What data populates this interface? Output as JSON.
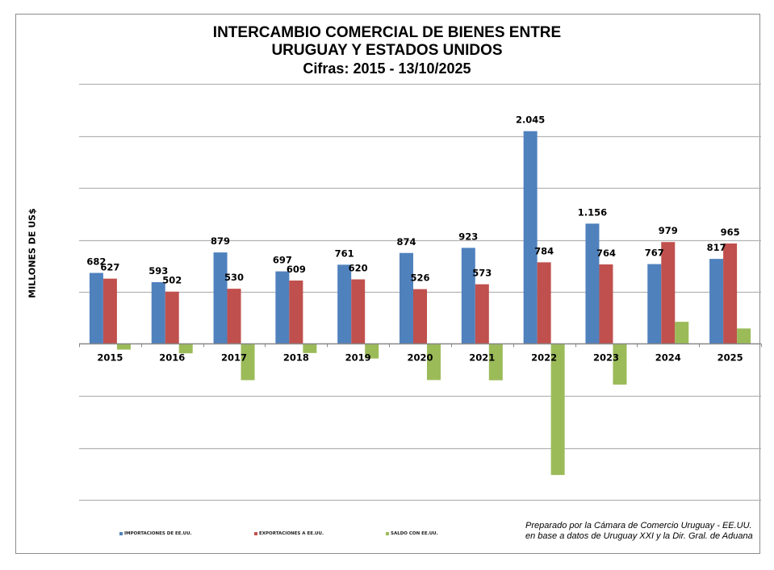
{
  "chart_data": {
    "type": "bar",
    "title": "INTERCAMBIO COMERCIAL DE BIENES ENTRE",
    "subtitle": "URUGUAY Y ESTADOS UNIDOS",
    "subtitle2": "Cifras:  2015 - 13/10/2025",
    "xlabel": "",
    "ylabel": "MILLONES DE US$",
    "ylim": [
      -1500,
      2500
    ],
    "gridline_step": 500,
    "grid": true,
    "legend_position": "bottom",
    "categories": [
      "2015",
      "2016",
      "2017",
      "2018",
      "2019",
      "2020",
      "2021",
      "2022",
      "2023",
      "2024",
      "2025"
    ],
    "series": [
      {
        "name": "IMPORTACIONES DE EE.UU.",
        "color": "#4F81BD",
        "values": [
          682,
          593,
          879,
          697,
          761,
          874,
          923,
          2045,
          1156,
          767,
          817
        ],
        "labels": [
          "682",
          "593",
          "879",
          "697",
          "761",
          "874",
          "923",
          "2.045",
          "1.156",
          "767",
          "817"
        ]
      },
      {
        "name": "EXPORTACIONES A EE.UU.",
        "color": "#C0504D",
        "values": [
          627,
          502,
          530,
          609,
          620,
          526,
          573,
          784,
          764,
          979,
          965
        ],
        "labels": [
          "627",
          "502",
          "530",
          "609",
          "620",
          "526",
          "573",
          "784",
          "764",
          "979",
          "965"
        ]
      },
      {
        "name": "SALDO CON EE.UU.",
        "color": "#9BBB59",
        "values": [
          -55,
          -91,
          -349,
          -88,
          -141,
          -348,
          -350,
          -1261,
          -392,
          212,
          148
        ],
        "labels": []
      }
    ]
  },
  "source_note": {
    "line1": "Preparado por la Cámara de Comercio Uruguay - EE.UU.",
    "line2": "en base  a datos de Uruguay XXI y la Dir. Gral. de Aduana"
  }
}
